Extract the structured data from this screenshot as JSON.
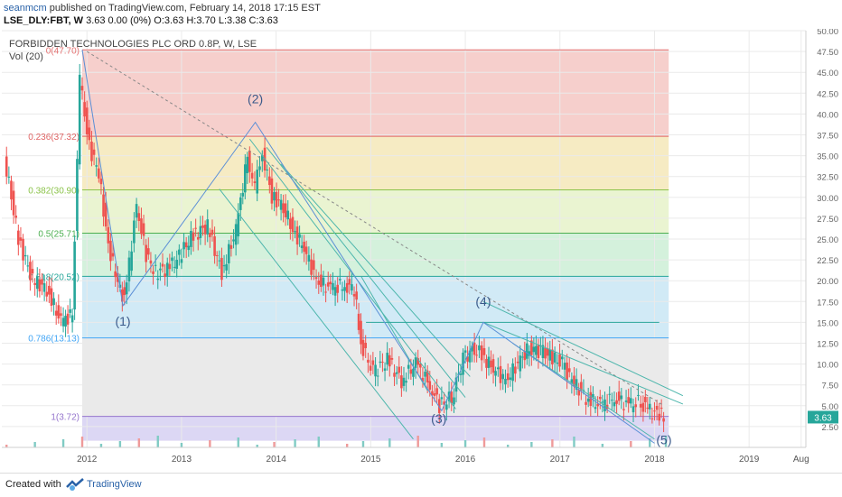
{
  "header": {
    "user": "seanmcm",
    "published_text": "published on TradingView.com, February 14, 2018 17:15 EST",
    "symbol": "LSE_DLY:FBT, W",
    "ohlc_text": "3.63 0.00 (0%) O:3.63 H:3.70 L:3.38 C:3.63"
  },
  "footer": {
    "created_text": "Created with",
    "brand": "TradingView"
  },
  "colors": {
    "up": "#26a69a",
    "down": "#ef5350",
    "brand": "#2962a8"
  },
  "chart_data": {
    "type": "candlestick",
    "title": "FORBIDDEN TECHNOLOGIES PLC ORD 0.8P, W, LSE",
    "volume_label": "Vol (20)",
    "price_badge": "3.63",
    "x_ticks": [
      "2012",
      "2013",
      "2014",
      "2015",
      "2016",
      "2017",
      "2018",
      "2019",
      "Aug"
    ],
    "y_ticks": [
      "2.50",
      "5.00",
      "7.50",
      "10.00",
      "12.50",
      "15.00",
      "17.50",
      "20.00",
      "22.50",
      "25.00",
      "27.50",
      "30.00",
      "32.50",
      "35.00",
      "37.50",
      "40.00",
      "42.50",
      "45.00",
      "47.50",
      "50.00"
    ],
    "ylim": [
      0,
      50
    ],
    "xlim": [
      2011.1,
      2019.6
    ],
    "grid": true,
    "fib_levels": [
      {
        "label": "0(47.70)",
        "value": 47.7,
        "line": "#e57373",
        "fill": "#f4c7c3"
      },
      {
        "label": "0.236(37.32)",
        "value": 37.32,
        "line": "#e06666",
        "fill": "#f5e8b8"
      },
      {
        "label": "0.382(30.90)",
        "value": 30.9,
        "line": "#8bc34a",
        "fill": "#e6f2c9"
      },
      {
        "label": "0.5(25.71)",
        "value": 25.71,
        "line": "#4caf50",
        "fill": "#cdeed6"
      },
      {
        "label": "0.618(20.52)",
        "value": 20.52,
        "line": "#26a69a",
        "fill": "#c9e6f5"
      },
      {
        "label": "0.786(13.13)",
        "value": 13.13,
        "line": "#42a5f5",
        "fill": "#e6e6e6"
      },
      {
        "label": "1(3.72)",
        "value": 3.72,
        "line": "#9575cd",
        "fill": "#d6d0f2"
      }
    ],
    "wave_labels": [
      {
        "text": "(1)",
        "x": 2012.38,
        "y": 14.6
      },
      {
        "text": "(2)",
        "x": 2013.78,
        "y": 41.3
      },
      {
        "text": "(3)",
        "x": 2015.72,
        "y": 2.9
      },
      {
        "text": "(4)",
        "x": 2016.19,
        "y": 17.0
      },
      {
        "text": "(5)",
        "x": 2018.1,
        "y": 0.4
      }
    ],
    "wave_path": [
      {
        "x": 2011.95,
        "y": 47.7
      },
      {
        "x": 2012.38,
        "y": 17.0
      },
      {
        "x": 2013.78,
        "y": 39.0
      },
      {
        "x": 2015.75,
        "y": 4.4
      },
      {
        "x": 2016.19,
        "y": 15.0
      },
      {
        "x": 2018.0,
        "y": 0.5
      }
    ],
    "dashed_trend": [
      {
        "x": 2012.0,
        "y": 47.5
      },
      {
        "x": 2018.1,
        "y": 5.0
      }
    ],
    "channel_lines": [
      [
        {
          "x": 2013.4,
          "y": 31.0
        },
        {
          "x": 2015.45,
          "y": 1.0
        }
      ],
      [
        {
          "x": 2013.72,
          "y": 37.0
        },
        {
          "x": 2015.9,
          "y": 4.6
        }
      ],
      [
        {
          "x": 2013.9,
          "y": 36.0
        },
        {
          "x": 2016.0,
          "y": 6.0
        }
      ],
      [
        {
          "x": 2014.05,
          "y": 34.0
        },
        {
          "x": 2016.05,
          "y": 8.5
        }
      ],
      [
        {
          "x": 2014.9,
          "y": 20.5
        },
        {
          "x": 2015.6,
          "y": 6.8
        }
      ],
      [
        {
          "x": 2016.19,
          "y": 15.0
        },
        {
          "x": 2018.3,
          "y": 5.2
        }
      ],
      [
        {
          "x": 2016.19,
          "y": 17.5
        },
        {
          "x": 2018.3,
          "y": 6.2
        }
      ],
      [
        {
          "x": 2016.5,
          "y": 12.5
        },
        {
          "x": 2018.0,
          "y": 1.0
        }
      ]
    ],
    "support_line": {
      "x1": 2014.95,
      "x2": 2018.05,
      "y": 15.0
    },
    "price_series": [
      {
        "x": 2011.15,
        "y": 35.0
      },
      {
        "x": 2011.3,
        "y": 25.0
      },
      {
        "x": 2011.45,
        "y": 20.0
      },
      {
        "x": 2011.6,
        "y": 19.0
      },
      {
        "x": 2011.75,
        "y": 15.0
      },
      {
        "x": 2011.87,
        "y": 16.0
      },
      {
        "x": 2011.95,
        "y": 44.0
      },
      {
        "x": 2012.05,
        "y": 36.0
      },
      {
        "x": 2012.15,
        "y": 33.0
      },
      {
        "x": 2012.25,
        "y": 24.0
      },
      {
        "x": 2012.35,
        "y": 20.0
      },
      {
        "x": 2012.42,
        "y": 17.5
      },
      {
        "x": 2012.55,
        "y": 29.0
      },
      {
        "x": 2012.65,
        "y": 23.0
      },
      {
        "x": 2012.75,
        "y": 21.0
      },
      {
        "x": 2012.9,
        "y": 21.5
      },
      {
        "x": 2013.0,
        "y": 23.0
      },
      {
        "x": 2013.15,
        "y": 25.5
      },
      {
        "x": 2013.3,
        "y": 26.5
      },
      {
        "x": 2013.45,
        "y": 21.0
      },
      {
        "x": 2013.6,
        "y": 26.0
      },
      {
        "x": 2013.72,
        "y": 35.0
      },
      {
        "x": 2013.8,
        "y": 31.0
      },
      {
        "x": 2013.88,
        "y": 35.5
      },
      {
        "x": 2013.98,
        "y": 30.0
      },
      {
        "x": 2014.1,
        "y": 29.0
      },
      {
        "x": 2014.2,
        "y": 26.0
      },
      {
        "x": 2014.32,
        "y": 24.0
      },
      {
        "x": 2014.45,
        "y": 20.0
      },
      {
        "x": 2014.6,
        "y": 19.0
      },
      {
        "x": 2014.75,
        "y": 19.5
      },
      {
        "x": 2014.85,
        "y": 19.0
      },
      {
        "x": 2014.92,
        "y": 12.5
      },
      {
        "x": 2015.05,
        "y": 9.0
      },
      {
        "x": 2015.2,
        "y": 10.5
      },
      {
        "x": 2015.35,
        "y": 8.0
      },
      {
        "x": 2015.5,
        "y": 10.0
      },
      {
        "x": 2015.65,
        "y": 7.5
      },
      {
        "x": 2015.75,
        "y": 5.0
      },
      {
        "x": 2015.88,
        "y": 6.0
      },
      {
        "x": 2016.0,
        "y": 10.5
      },
      {
        "x": 2016.12,
        "y": 12.0
      },
      {
        "x": 2016.2,
        "y": 11.0
      },
      {
        "x": 2016.32,
        "y": 9.5
      },
      {
        "x": 2016.45,
        "y": 8.0
      },
      {
        "x": 2016.58,
        "y": 10.0
      },
      {
        "x": 2016.7,
        "y": 12.0
      },
      {
        "x": 2016.82,
        "y": 11.5
      },
      {
        "x": 2016.92,
        "y": 11.0
      },
      {
        "x": 2017.05,
        "y": 10.0
      },
      {
        "x": 2017.15,
        "y": 8.0
      },
      {
        "x": 2017.3,
        "y": 6.0
      },
      {
        "x": 2017.45,
        "y": 5.0
      },
      {
        "x": 2017.6,
        "y": 6.0
      },
      {
        "x": 2017.75,
        "y": 5.0
      },
      {
        "x": 2017.88,
        "y": 5.5
      },
      {
        "x": 2017.95,
        "y": 4.5
      },
      {
        "x": 2018.05,
        "y": 4.0
      },
      {
        "x": 2018.12,
        "y": 3.63
      }
    ]
  }
}
